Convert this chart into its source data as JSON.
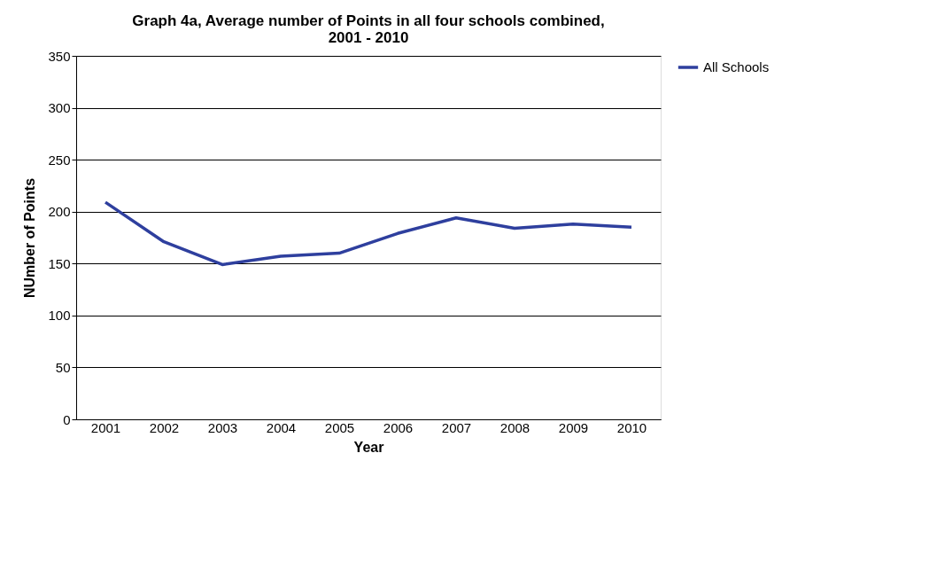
{
  "chart_data": {
    "type": "line",
    "title": "Graph 4a, Average number of Points in all four schools combined, 2001 - 2010",
    "xlabel": "Year",
    "ylabel": "NUmber of Points",
    "categories": [
      "2001",
      "2002",
      "2003",
      "2004",
      "2005",
      "2006",
      "2007",
      "2008",
      "2009",
      "2010"
    ],
    "series": [
      {
        "name": "All Schools",
        "color": "#2e3f9e",
        "values": [
          209,
          171,
          149,
          157,
          160,
          179,
          194,
          184,
          188,
          185
        ]
      }
    ],
    "ylim": [
      0,
      350
    ],
    "yticks": [
      0,
      50,
      100,
      150,
      200,
      250,
      300,
      350
    ],
    "grid": "y",
    "legend": "right",
    "marker": "none",
    "line_style": "solid"
  }
}
